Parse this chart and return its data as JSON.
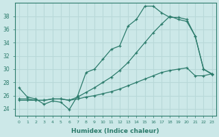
{
  "xlabel": "Humidex (Indice chaleur)",
  "background_color": "#cce8e8",
  "line_color": "#2a7a6a",
  "grid_color": "#b8d8d8",
  "xlim": [
    -0.5,
    23.5
  ],
  "ylim": [
    23,
    40
  ],
  "yticks": [
    24,
    26,
    28,
    30,
    32,
    34,
    36,
    38
  ],
  "xticks": [
    0,
    1,
    2,
    3,
    4,
    5,
    6,
    7,
    8,
    9,
    10,
    11,
    12,
    13,
    14,
    15,
    16,
    17,
    18,
    19,
    20,
    21,
    22,
    23
  ],
  "series1_x": [
    0,
    1,
    2,
    3,
    4,
    5,
    6,
    7,
    8,
    9,
    10,
    11,
    12,
    13,
    14,
    15,
    16,
    17,
    18,
    19,
    20,
    21,
    22,
    23
  ],
  "series1_y": [
    27.2,
    25.8,
    25.5,
    24.7,
    25.2,
    25.0,
    23.9,
    26.0,
    29.5,
    30.0,
    31.5,
    33.0,
    33.5,
    36.5,
    37.5,
    39.5,
    39.5,
    38.5,
    37.8,
    37.8,
    37.5,
    35.0,
    30.0,
    29.3
  ],
  "series2_x": [
    0,
    1,
    2,
    3,
    4,
    5,
    6,
    7,
    8,
    9,
    10,
    11,
    12,
    13,
    14,
    15,
    16,
    17,
    18,
    19,
    20,
    21,
    22,
    23
  ],
  "series2_y": [
    25.5,
    25.5,
    25.3,
    25.3,
    25.5,
    25.5,
    25.3,
    25.8,
    26.5,
    27.2,
    28.0,
    28.8,
    29.8,
    31.0,
    32.5,
    34.0,
    35.5,
    36.8,
    38.0,
    37.5,
    37.2,
    35.0,
    30.0,
    29.2
  ],
  "series3_x": [
    0,
    1,
    2,
    3,
    4,
    5,
    6,
    7,
    8,
    9,
    10,
    11,
    12,
    13,
    14,
    15,
    16,
    17,
    18,
    19,
    20,
    21,
    22,
    23
  ],
  "series3_y": [
    25.3,
    25.3,
    25.3,
    25.3,
    25.5,
    25.5,
    25.3,
    25.5,
    25.8,
    26.0,
    26.3,
    26.6,
    27.0,
    27.5,
    28.0,
    28.5,
    29.0,
    29.5,
    29.8,
    30.0,
    30.2,
    29.0,
    29.0,
    29.3
  ]
}
